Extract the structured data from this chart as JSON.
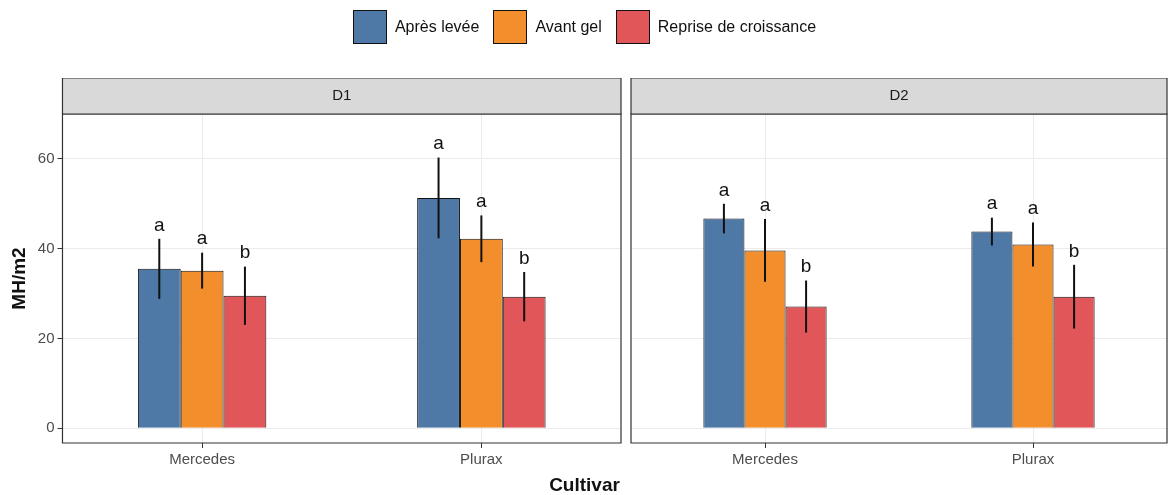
{
  "chart_data": [
    {
      "type": "bar",
      "title": "D1",
      "xlabel": "Cultivar",
      "ylabel": "MH/m2",
      "categories": [
        "Mercedes",
        "Plurax"
      ],
      "series": [
        {
          "name": "Après levée",
          "color": "#4e79a7",
          "values": [
            35.5,
            51.3
          ],
          "errors": [
            6.7,
            9
          ]
        },
        {
          "name": "Avant gel",
          "color": "#f28e2b",
          "values": [
            35.1,
            42.2
          ],
          "errors": [
            4,
            5.2
          ]
        },
        {
          "name": "Reprise de croissance",
          "color": "#e15759",
          "values": [
            29.5,
            29.3
          ],
          "errors": [
            6.5,
            5.5
          ]
        }
      ],
      "ylim": [
        -3.3,
        70
      ],
      "yticks": [
        0,
        20,
        40,
        60
      ],
      "grid": true,
      "legend": "top",
      "annotations": [
        "a",
        "a",
        "b",
        "a",
        "a",
        "b"
      ]
    },
    {
      "type": "bar",
      "title": "D2",
      "categories": [
        "Mercedes",
        "Plurax"
      ],
      "series": [
        {
          "color": "#4e79a7",
          "values": [
            46.7,
            43.8
          ],
          "errors": [
            3.3,
            3.1
          ]
        },
        {
          "color": "#f28e2b",
          "values": [
            39.6,
            40.9
          ],
          "errors": [
            7,
            4.9
          ]
        },
        {
          "color": "#e15759",
          "values": [
            27.1,
            29.3
          ],
          "errors": [
            5.8,
            7.1
          ]
        }
      ],
      "ylim": [
        -3.3,
        70
      ],
      "yticks": [
        0,
        20,
        40,
        60
      ],
      "grid": true,
      "tick_labels": "x",
      "annotations": [
        "a",
        "a",
        "b",
        "a",
        "a",
        "b"
      ]
    }
  ]
}
